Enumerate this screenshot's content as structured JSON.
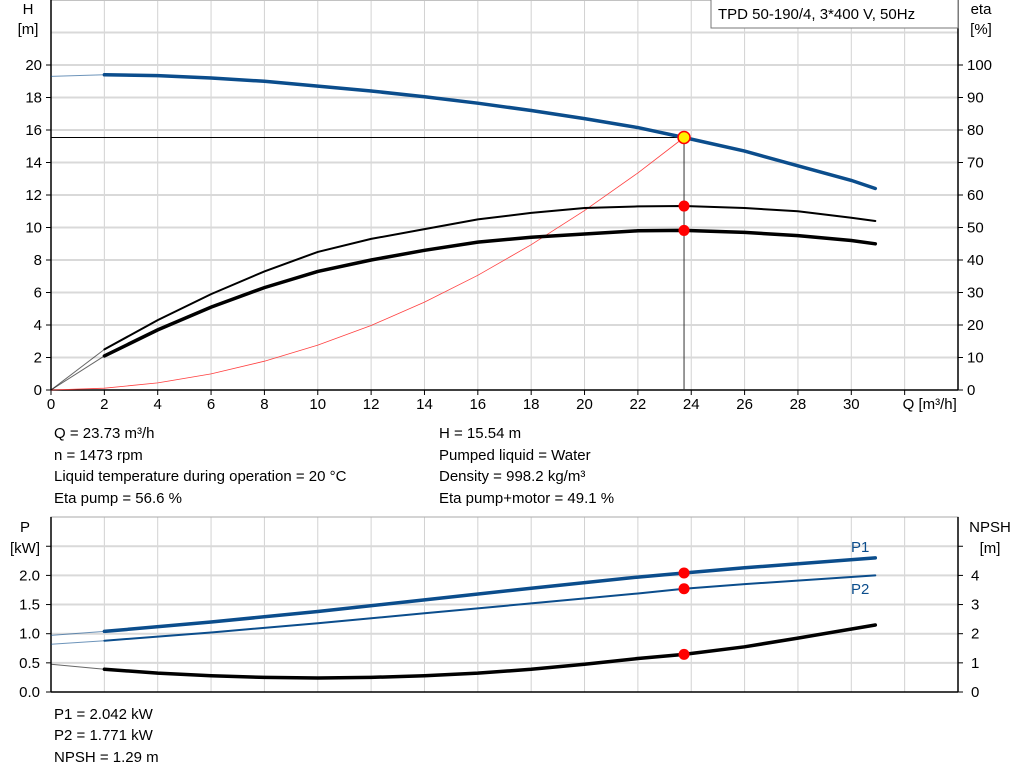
{
  "chart_data": [
    {
      "type": "line",
      "title": "TPD 50-190/4, 3*400 V, 50Hz",
      "xlabel": "Q [m³/h]",
      "ylabel_left": [
        "H",
        "[m]"
      ],
      "ylabel_right": [
        "eta",
        "[%]"
      ],
      "xlim": [
        0,
        34
      ],
      "ylim_left": [
        0,
        24
      ],
      "ylim_right": [
        0,
        120
      ],
      "x_ticks": [
        0,
        2,
        4,
        6,
        8,
        10,
        12,
        14,
        16,
        18,
        20,
        22,
        24,
        26,
        28,
        30
      ],
      "y_ticks_left": [
        0,
        2,
        4,
        6,
        8,
        10,
        12,
        14,
        16,
        18,
        20
      ],
      "y_ticks_right": [
        0,
        10,
        20,
        30,
        40,
        50,
        60,
        70,
        80,
        90,
        100
      ],
      "grid": true,
      "series": [
        {
          "axis": "left",
          "color": "#0b4d8c",
          "x": [
            0,
            2,
            4,
            6,
            8,
            10,
            12,
            14,
            16,
            18,
            20,
            22,
            23.73,
            26,
            28,
            30,
            30.9
          ],
          "y": [
            19.3,
            19.4,
            19.35,
            19.2,
            19.0,
            18.7,
            18.4,
            18.05,
            17.65,
            17.2,
            16.7,
            16.15,
            15.54,
            14.7,
            13.8,
            12.9,
            12.4
          ]
        },
        {
          "axis": "right",
          "color": "#000000",
          "x": [
            0,
            2,
            4,
            6,
            8,
            10,
            12,
            14,
            16,
            18,
            20,
            22,
            23.73,
            26,
            28,
            30,
            30.9
          ],
          "y": [
            0,
            12.5,
            21.5,
            29.5,
            36.5,
            42.5,
            46.5,
            49.5,
            52.5,
            54.5,
            56,
            56.5,
            56.6,
            56,
            55,
            53,
            52
          ]
        },
        {
          "axis": "right",
          "color": "#000000",
          "x": [
            0,
            2,
            4,
            6,
            8,
            10,
            12,
            14,
            16,
            18,
            20,
            22,
            23.73,
            26,
            28,
            30,
            30.9
          ],
          "y": [
            0,
            10.5,
            18.5,
            25.5,
            31.5,
            36.5,
            40,
            43,
            45.5,
            47,
            48,
            49,
            49.1,
            48.5,
            47.5,
            46,
            45
          ]
        },
        {
          "axis": "left",
          "color": "#ff4040",
          "x": [
            0,
            2,
            4,
            6,
            8,
            10,
            12,
            14,
            16,
            18,
            20,
            22,
            23.73
          ],
          "y": [
            0,
            0.11,
            0.44,
            0.99,
            1.77,
            2.76,
            3.97,
            5.41,
            7.06,
            8.94,
            11.04,
            13.36,
            15.54
          ]
        }
      ],
      "operating_point": {
        "Q": 23.73,
        "H": 15.54,
        "eta_pump": 56.6,
        "eta_total": 49.1
      }
    },
    {
      "type": "line",
      "ylabel_left": [
        "P",
        "[kW]"
      ],
      "ylabel_right": [
        "NPSH",
        "[m]"
      ],
      "xlim": [
        0,
        34
      ],
      "ylim_left": [
        0,
        3.0
      ],
      "ylim_right": [
        0,
        6
      ],
      "y_ticks_left": [
        "0.0",
        "0.5",
        "1.0",
        "1.5",
        "2.0"
      ],
      "y_ticks_right": [
        0,
        1,
        2,
        3,
        4
      ],
      "grid": true,
      "series": [
        {
          "name": "P1",
          "axis": "left",
          "color": "#0b4d8c",
          "x": [
            0,
            2,
            6,
            10,
            14,
            18,
            22,
            23.73,
            26,
            30.9
          ],
          "y": [
            0.97,
            1.04,
            1.2,
            1.38,
            1.58,
            1.78,
            1.97,
            2.042,
            2.13,
            2.3
          ]
        },
        {
          "name": "P2",
          "axis": "left",
          "color": "#0b4d8c",
          "x": [
            0,
            2,
            6,
            10,
            14,
            18,
            22,
            23.73,
            26,
            30.9
          ],
          "y": [
            0.82,
            0.88,
            1.02,
            1.18,
            1.35,
            1.52,
            1.69,
            1.771,
            1.85,
            2.0
          ]
        },
        {
          "axis": "right",
          "color": "#000000",
          "x": [
            0,
            2,
            4,
            6,
            8,
            10,
            12,
            14,
            16,
            18,
            20,
            22,
            23.73,
            26,
            28,
            30.9
          ],
          "y": [
            0.95,
            0.78,
            0.65,
            0.56,
            0.5,
            0.48,
            0.5,
            0.56,
            0.65,
            0.78,
            0.95,
            1.15,
            1.29,
            1.55,
            1.85,
            2.3
          ]
        }
      ]
    }
  ],
  "info_top": {
    "q": "Q = 23.73 m³/h",
    "n": "n = 1473 rpm",
    "temp": "Liquid temperature during operation = 20 °C",
    "eta_pump": "Eta pump = 56.6 %",
    "h": "H = 15.54 m",
    "liquid": "Pumped liquid = Water",
    "density": "Density = 998.2 kg/m³",
    "eta_total": "Eta pump+motor = 49.1 %"
  },
  "info_bottom": {
    "p1": "P1 = 2.042 kW",
    "p2": "P2 = 1.771 kW",
    "npsh": "NPSH = 1.29 m"
  }
}
